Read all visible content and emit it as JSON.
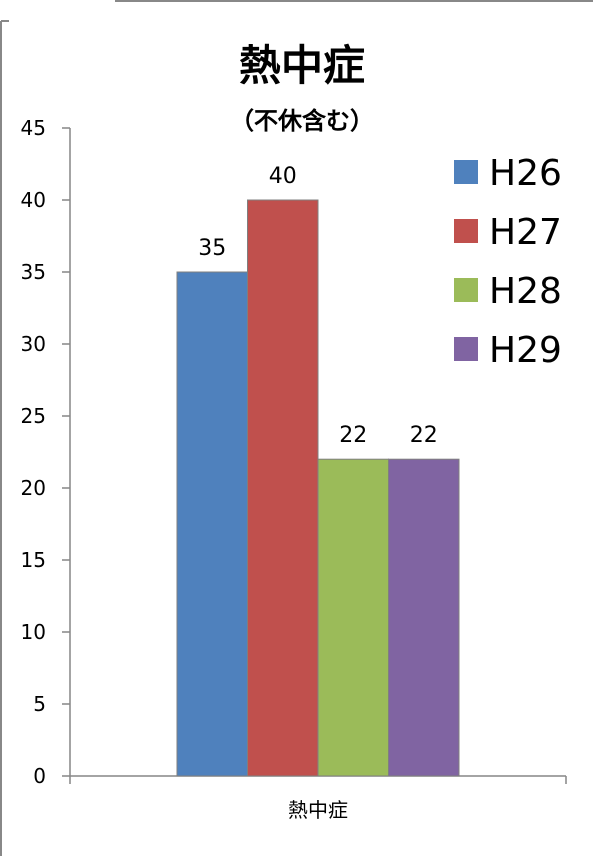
{
  "chart_data": {
    "type": "bar",
    "title": "熱中症",
    "subtitle": "（不休含む）",
    "categories": [
      "熱中症"
    ],
    "series": [
      {
        "name": "H26",
        "values": [
          35
        ],
        "color": "#4F81BD"
      },
      {
        "name": "H27",
        "values": [
          40
        ],
        "color": "#C0504D"
      },
      {
        "name": "H28",
        "values": [
          22
        ],
        "color": "#9BBB59"
      },
      {
        "name": "H29",
        "values": [
          22
        ],
        "color": "#8064A2"
      }
    ],
    "ylim": [
      0,
      45
    ],
    "y_ticks": [
      "0",
      "5",
      "10",
      "15",
      "20",
      "25",
      "30",
      "35",
      "40",
      "45"
    ],
    "data_labels": [
      "35",
      "40",
      "22",
      "22"
    ],
    "grid": false,
    "legend_position": "right"
  }
}
